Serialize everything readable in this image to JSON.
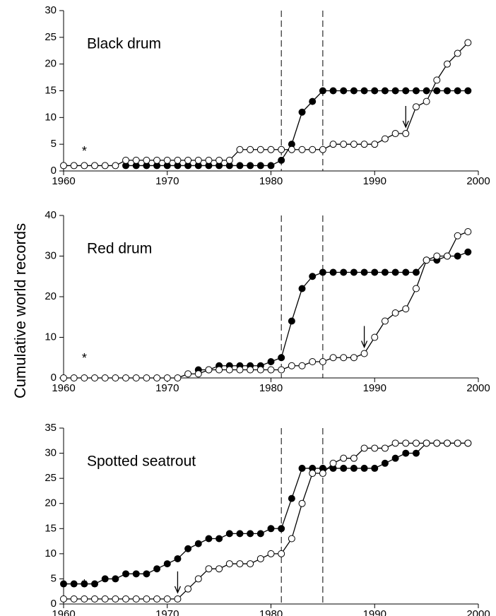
{
  "chart_data": [
    {
      "type": "line",
      "title": "Black drum",
      "x": [
        1960,
        1961,
        1962,
        1963,
        1964,
        1965,
        1966,
        1967,
        1968,
        1969,
        1970,
        1971,
        1972,
        1973,
        1974,
        1975,
        1976,
        1977,
        1978,
        1979,
        1980,
        1981,
        1982,
        1983,
        1984,
        1985,
        1986,
        1987,
        1988,
        1989,
        1990,
        1991,
        1992,
        1993,
        1994,
        1995,
        1996,
        1997,
        1998,
        1999
      ],
      "series": [
        {
          "color": "#000000",
          "values": [
            null,
            null,
            null,
            null,
            null,
            null,
            1,
            1,
            1,
            1,
            1,
            1,
            1,
            1,
            1,
            1,
            1,
            1,
            1,
            1,
            1,
            2,
            5,
            11,
            13,
            15,
            15,
            15,
            15,
            15,
            15,
            15,
            15,
            15,
            15,
            15,
            15,
            15,
            15,
            15
          ]
        },
        {
          "color": "#ffffff",
          "values": [
            1,
            1,
            1,
            1,
            1,
            1,
            2,
            2,
            2,
            2,
            2,
            2,
            2,
            2,
            2,
            2,
            2,
            4,
            4,
            4,
            4,
            4,
            4,
            4,
            4,
            4,
            5,
            5,
            5,
            5,
            5,
            6,
            7,
            7,
            12,
            13,
            17,
            20,
            22,
            24
          ]
        }
      ],
      "xlim": [
        1960,
        2000
      ],
      "xticks": [
        1960,
        1970,
        1980,
        1990,
        2000
      ],
      "ylim": [
        0,
        30
      ],
      "yticks": [
        0,
        5,
        10,
        15,
        20,
        25,
        30
      ],
      "vlines": [
        1981,
        1985
      ],
      "arrow_x": 1993,
      "annotation": {
        "text": "*",
        "x": 1962
      }
    },
    {
      "type": "line",
      "title": "Red drum",
      "ylabel": "Cumulative world records",
      "x": [
        1960,
        1961,
        1962,
        1963,
        1964,
        1965,
        1966,
        1967,
        1968,
        1969,
        1970,
        1971,
        1972,
        1973,
        1974,
        1975,
        1976,
        1977,
        1978,
        1979,
        1980,
        1981,
        1982,
        1983,
        1984,
        1985,
        1986,
        1987,
        1988,
        1989,
        1990,
        1991,
        1992,
        1993,
        1994,
        1995,
        1996,
        1997,
        1998,
        1999
      ],
      "series": [
        {
          "color": "#000000",
          "values": [
            null,
            null,
            null,
            null,
            null,
            null,
            null,
            null,
            null,
            null,
            null,
            null,
            null,
            2,
            2,
            3,
            3,
            3,
            3,
            3,
            4,
            5,
            14,
            22,
            25,
            26,
            26,
            26,
            26,
            26,
            26,
            26,
            26,
            26,
            26,
            29,
            29,
            30,
            30,
            31
          ]
        },
        {
          "color": "#ffffff",
          "values": [
            0,
            0,
            0,
            0,
            0,
            0,
            0,
            0,
            0,
            0,
            0,
            0,
            1,
            1,
            2,
            2,
            2,
            2,
            2,
            2,
            2,
            2,
            3,
            3,
            4,
            4,
            5,
            5,
            5,
            6,
            10,
            14,
            16,
            17,
            22,
            29,
            30,
            30,
            35,
            36
          ]
        }
      ],
      "xlim": [
        1960,
        2000
      ],
      "xticks": [
        1960,
        1970,
        1980,
        1990,
        2000
      ],
      "ylim": [
        0,
        40
      ],
      "yticks": [
        0,
        10,
        20,
        30,
        40
      ],
      "vlines": [
        1981,
        1985
      ],
      "arrow_x": 1989,
      "annotation": {
        "text": "*",
        "x": 1962
      }
    },
    {
      "type": "line",
      "title": "Spotted seatrout",
      "x": [
        1960,
        1961,
        1962,
        1963,
        1964,
        1965,
        1966,
        1967,
        1968,
        1969,
        1970,
        1971,
        1972,
        1973,
        1974,
        1975,
        1976,
        1977,
        1978,
        1979,
        1980,
        1981,
        1982,
        1983,
        1984,
        1985,
        1986,
        1987,
        1988,
        1989,
        1990,
        1991,
        1992,
        1993,
        1994,
        1995,
        1996,
        1997,
        1998,
        1999
      ],
      "series": [
        {
          "color": "#000000",
          "values": [
            4,
            4,
            4,
            4,
            5,
            5,
            6,
            6,
            6,
            7,
            8,
            9,
            11,
            12,
            13,
            13,
            14,
            14,
            14,
            14,
            15,
            15,
            21,
            27,
            27,
            27,
            27,
            27,
            27,
            27,
            27,
            28,
            29,
            30,
            30,
            32,
            32,
            32,
            32,
            32
          ]
        },
        {
          "color": "#ffffff",
          "values": [
            1,
            1,
            1,
            1,
            1,
            1,
            1,
            1,
            1,
            1,
            1,
            1,
            3,
            5,
            7,
            7,
            8,
            8,
            8,
            9,
            10,
            10,
            13,
            20,
            26,
            26,
            28,
            29,
            29,
            31,
            31,
            31,
            32,
            32,
            32,
            32,
            32,
            32,
            32,
            32
          ]
        }
      ],
      "xlim": [
        1960,
        2000
      ],
      "xticks": [
        1960,
        1970,
        1980,
        1990,
        2000
      ],
      "ylim": [
        0,
        35
      ],
      "yticks": [
        0,
        5,
        10,
        15,
        20,
        25,
        30,
        35
      ],
      "vlines": [
        1981,
        1985
      ],
      "arrow_x": 1971,
      "annotation": {
        "text": "*",
        "x": 1962
      }
    }
  ]
}
